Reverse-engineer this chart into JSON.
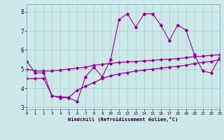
{
  "x": [
    0,
    1,
    2,
    3,
    4,
    5,
    6,
    7,
    8,
    9,
    10,
    11,
    12,
    13,
    14,
    15,
    16,
    17,
    18,
    19,
    20,
    21,
    22,
    23
  ],
  "y_top": [
    5.4,
    4.8,
    4.8,
    3.6,
    3.5,
    3.5,
    3.3,
    4.6,
    5.1,
    4.6,
    5.5,
    7.6,
    7.9,
    7.2,
    7.9,
    7.9,
    7.3,
    6.5,
    7.3,
    7.05,
    5.75,
    4.9,
    4.8,
    5.6
  ],
  "y_mid": [
    5.0,
    4.9,
    4.9,
    4.9,
    4.95,
    5.0,
    5.05,
    5.1,
    5.2,
    5.25,
    5.3,
    5.35,
    5.38,
    5.4,
    5.43,
    5.46,
    5.5,
    5.52,
    5.55,
    5.6,
    5.65,
    5.68,
    5.72,
    5.75
  ],
  "y_bot": [
    4.5,
    4.5,
    4.52,
    3.6,
    3.55,
    3.52,
    3.9,
    4.1,
    4.3,
    4.5,
    4.65,
    4.75,
    4.82,
    4.9,
    4.95,
    5.0,
    5.05,
    5.1,
    5.15,
    5.2,
    5.3,
    5.35,
    5.4,
    5.5
  ],
  "ylim": [
    2.9,
    8.4
  ],
  "xlim": [
    0,
    23
  ],
  "yticks": [
    3,
    4,
    5,
    6,
    7,
    8
  ],
  "xticks": [
    0,
    1,
    2,
    3,
    4,
    5,
    6,
    7,
    8,
    9,
    10,
    11,
    12,
    13,
    14,
    15,
    16,
    17,
    18,
    19,
    20,
    21,
    22,
    23
  ],
  "line_color": "#990099",
  "bg_color": "#cce8e8",
  "grid_color": "#aacccc",
  "xlabel": "Windchill (Refroidissement éolien,°C)"
}
